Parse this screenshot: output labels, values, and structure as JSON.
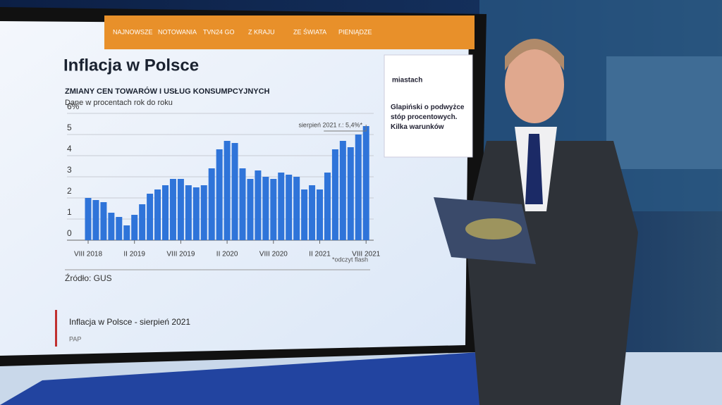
{
  "page": {
    "nav": [
      "NAJNOWSZE",
      "NOTOWANIA",
      "TVN24 GO",
      "Z KRAJU",
      "ZE ŚWIATA",
      "PIENIĄDZE"
    ],
    "sidebar": [
      "miastach",
      "Glapiński o podwyżce stóp procentowych. Kilka warunków"
    ],
    "caption": "Inflacja w Polsce - sierpień 2021",
    "caption_source": "PAP"
  },
  "chart_data": {
    "type": "bar",
    "title": "Inflacja w Polsce",
    "subtitle": "ZMIANY CEN TOWARÓW I USŁUG KONSUMPCYJNYCH",
    "unit_note": "Dane w procentach rok do roku",
    "annotation": "sierpień 2021 r.: 5,4%*",
    "footnote": "*odczyt flash",
    "source": "Źródło: GUS",
    "categories": [
      "VIII 2018",
      null,
      null,
      null,
      null,
      null,
      "II 2019",
      null,
      null,
      null,
      null,
      null,
      "VIII 2019",
      null,
      null,
      null,
      null,
      null,
      "II 2020",
      null,
      null,
      null,
      null,
      null,
      "VIII 2020",
      null,
      null,
      null,
      null,
      null,
      "II 2021",
      null,
      null,
      null,
      null,
      null,
      "VIII 2021"
    ],
    "values": [
      2.0,
      1.9,
      1.8,
      1.3,
      1.1,
      0.7,
      1.2,
      1.7,
      2.2,
      2.4,
      2.6,
      2.9,
      2.9,
      2.6,
      2.5,
      2.6,
      3.4,
      4.3,
      4.7,
      4.6,
      3.4,
      2.9,
      3.3,
      3.0,
      2.9,
      3.2,
      3.1,
      3.0,
      2.4,
      2.6,
      2.4,
      3.2,
      4.3,
      4.7,
      4.4,
      5.0,
      5.4
    ],
    "color": "#2f74d9",
    "ylim": [
      0,
      6
    ],
    "yticks": [
      0,
      1,
      2,
      3,
      4,
      5,
      {
        "value": 6,
        "label": "6%"
      }
    ],
    "grid": true
  }
}
